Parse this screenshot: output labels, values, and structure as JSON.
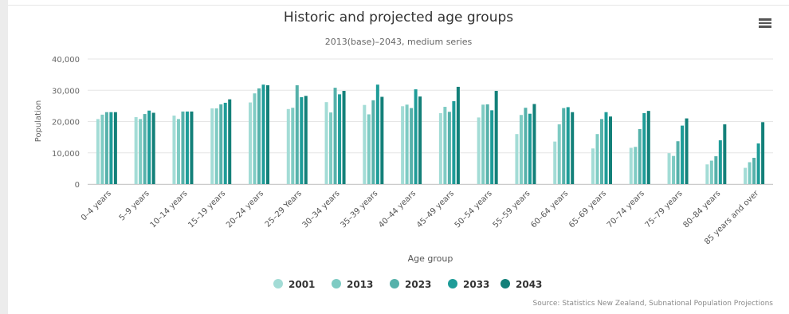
{
  "menu": {
    "icon": "hamburger-menu-icon"
  },
  "source": "Source: Statistics New Zealand, Subnational Population Projections",
  "chart_data": {
    "type": "bar",
    "title": "Historic and projected age groups",
    "subtitle": "2013(base)–2043, medium series",
    "xlabel": "Age group",
    "ylabel": "Population",
    "ylim": [
      0,
      40000
    ],
    "yticks": [
      "0",
      "10,000",
      "20,000",
      "30,000",
      "40,000"
    ],
    "grid": true,
    "legend_position": "bottom-center",
    "categories": [
      "0–4 years",
      "5–9 years",
      "10–14 years",
      "15–19 years",
      "20–24 years",
      "25–29 Years",
      "30–34 years",
      "35–39 years",
      "40–44 years",
      "45–49 years",
      "50–54 years",
      "55–59 years",
      "60–64 years",
      "65–69 years",
      "70–74 years",
      "75–79 years",
      "80–84 years",
      "85 years and over"
    ],
    "series": [
      {
        "name": "2001",
        "color": "#a3dcd6",
        "values": [
          20800,
          21400,
          21900,
          24200,
          26100,
          24000,
          26200,
          25300,
          24900,
          22700,
          21300,
          16000,
          13600,
          11400,
          11600,
          9900,
          6300,
          5200
        ]
      },
      {
        "name": "2013",
        "color": "#7ecbc3",
        "values": [
          22200,
          20800,
          20800,
          24200,
          29000,
          24400,
          22900,
          22300,
          25400,
          24700,
          25400,
          22100,
          19100,
          16000,
          11900,
          9000,
          7500,
          7000
        ]
      },
      {
        "name": "2023",
        "color": "#55b1aa",
        "values": [
          23000,
          22400,
          23200,
          25500,
          30600,
          31600,
          30800,
          26800,
          24300,
          23100,
          25500,
          24400,
          24300,
          20800,
          17600,
          13700,
          8900,
          8400
        ]
      },
      {
        "name": "2033",
        "color": "#1e9c98",
        "values": [
          23000,
          23500,
          23200,
          26000,
          31800,
          27800,
          28700,
          31800,
          30300,
          26500,
          23600,
          22500,
          24600,
          23000,
          22700,
          18700,
          14000,
          13000
        ]
      },
      {
        "name": "2043",
        "color": "#138079",
        "values": [
          23000,
          22800,
          23200,
          27100,
          31600,
          28200,
          29800,
          27900,
          28000,
          31100,
          29800,
          25600,
          23000,
          21600,
          23400,
          21000,
          19100,
          19800
        ]
      }
    ]
  }
}
